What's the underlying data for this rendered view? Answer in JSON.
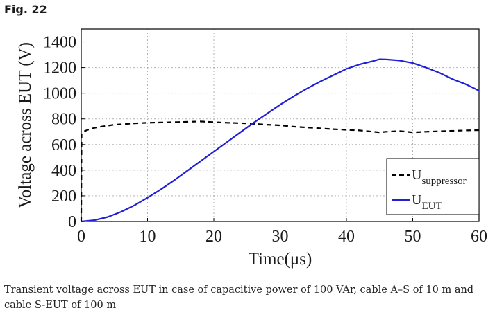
{
  "figure_label": "Fig. 22",
  "caption": "Transient voltage across EUT in case of capacitive power of 100 VAr, cable A–S of 10 m and cable S-EUT of 100 m",
  "chart_data": {
    "type": "line",
    "xlabel": "Time(μs)",
    "ylabel": "Voltage across EUT (V)",
    "xlim": [
      0,
      60
    ],
    "ylim": [
      0,
      1500
    ],
    "xticks": [
      0,
      10,
      20,
      30,
      40,
      50,
      60
    ],
    "yticks": [
      0,
      200,
      400,
      600,
      800,
      1000,
      1200,
      1400
    ],
    "grid": true,
    "legend_position": "bottom-right",
    "series": [
      {
        "name_main": "U",
        "name_sub": "suppressor",
        "color": "#000000",
        "style": "dashed",
        "x": [
          0,
          0.05,
          0.3,
          1,
          2,
          3,
          5,
          8,
          10,
          12,
          15,
          18,
          20,
          22,
          25,
          28,
          30,
          32,
          35,
          38,
          40,
          42,
          44,
          45,
          46,
          48,
          50,
          52,
          55,
          58,
          60
        ],
        "y": [
          0,
          680,
          700,
          715,
          730,
          740,
          755,
          765,
          770,
          772,
          776,
          780,
          775,
          770,
          765,
          755,
          750,
          740,
          730,
          720,
          715,
          710,
          700,
          695,
          700,
          705,
          695,
          700,
          705,
          710,
          712
        ]
      },
      {
        "name_main": "U",
        "name_sub": "EUT",
        "color": "#1f1fd6",
        "style": "solid",
        "x": [
          0,
          2,
          4,
          6,
          8,
          10,
          12,
          14,
          16,
          18,
          20,
          22,
          24,
          26,
          28,
          30,
          32,
          34,
          36,
          38,
          40,
          42,
          44,
          45,
          46,
          48,
          50,
          52,
          54,
          56,
          58,
          60
        ],
        "y": [
          0,
          10,
          35,
          75,
          125,
          185,
          250,
          320,
          395,
          470,
          545,
          620,
          695,
          770,
          840,
          910,
          975,
          1035,
          1090,
          1140,
          1190,
          1225,
          1250,
          1265,
          1263,
          1255,
          1235,
          1200,
          1160,
          1110,
          1070,
          1020
        ]
      }
    ]
  }
}
